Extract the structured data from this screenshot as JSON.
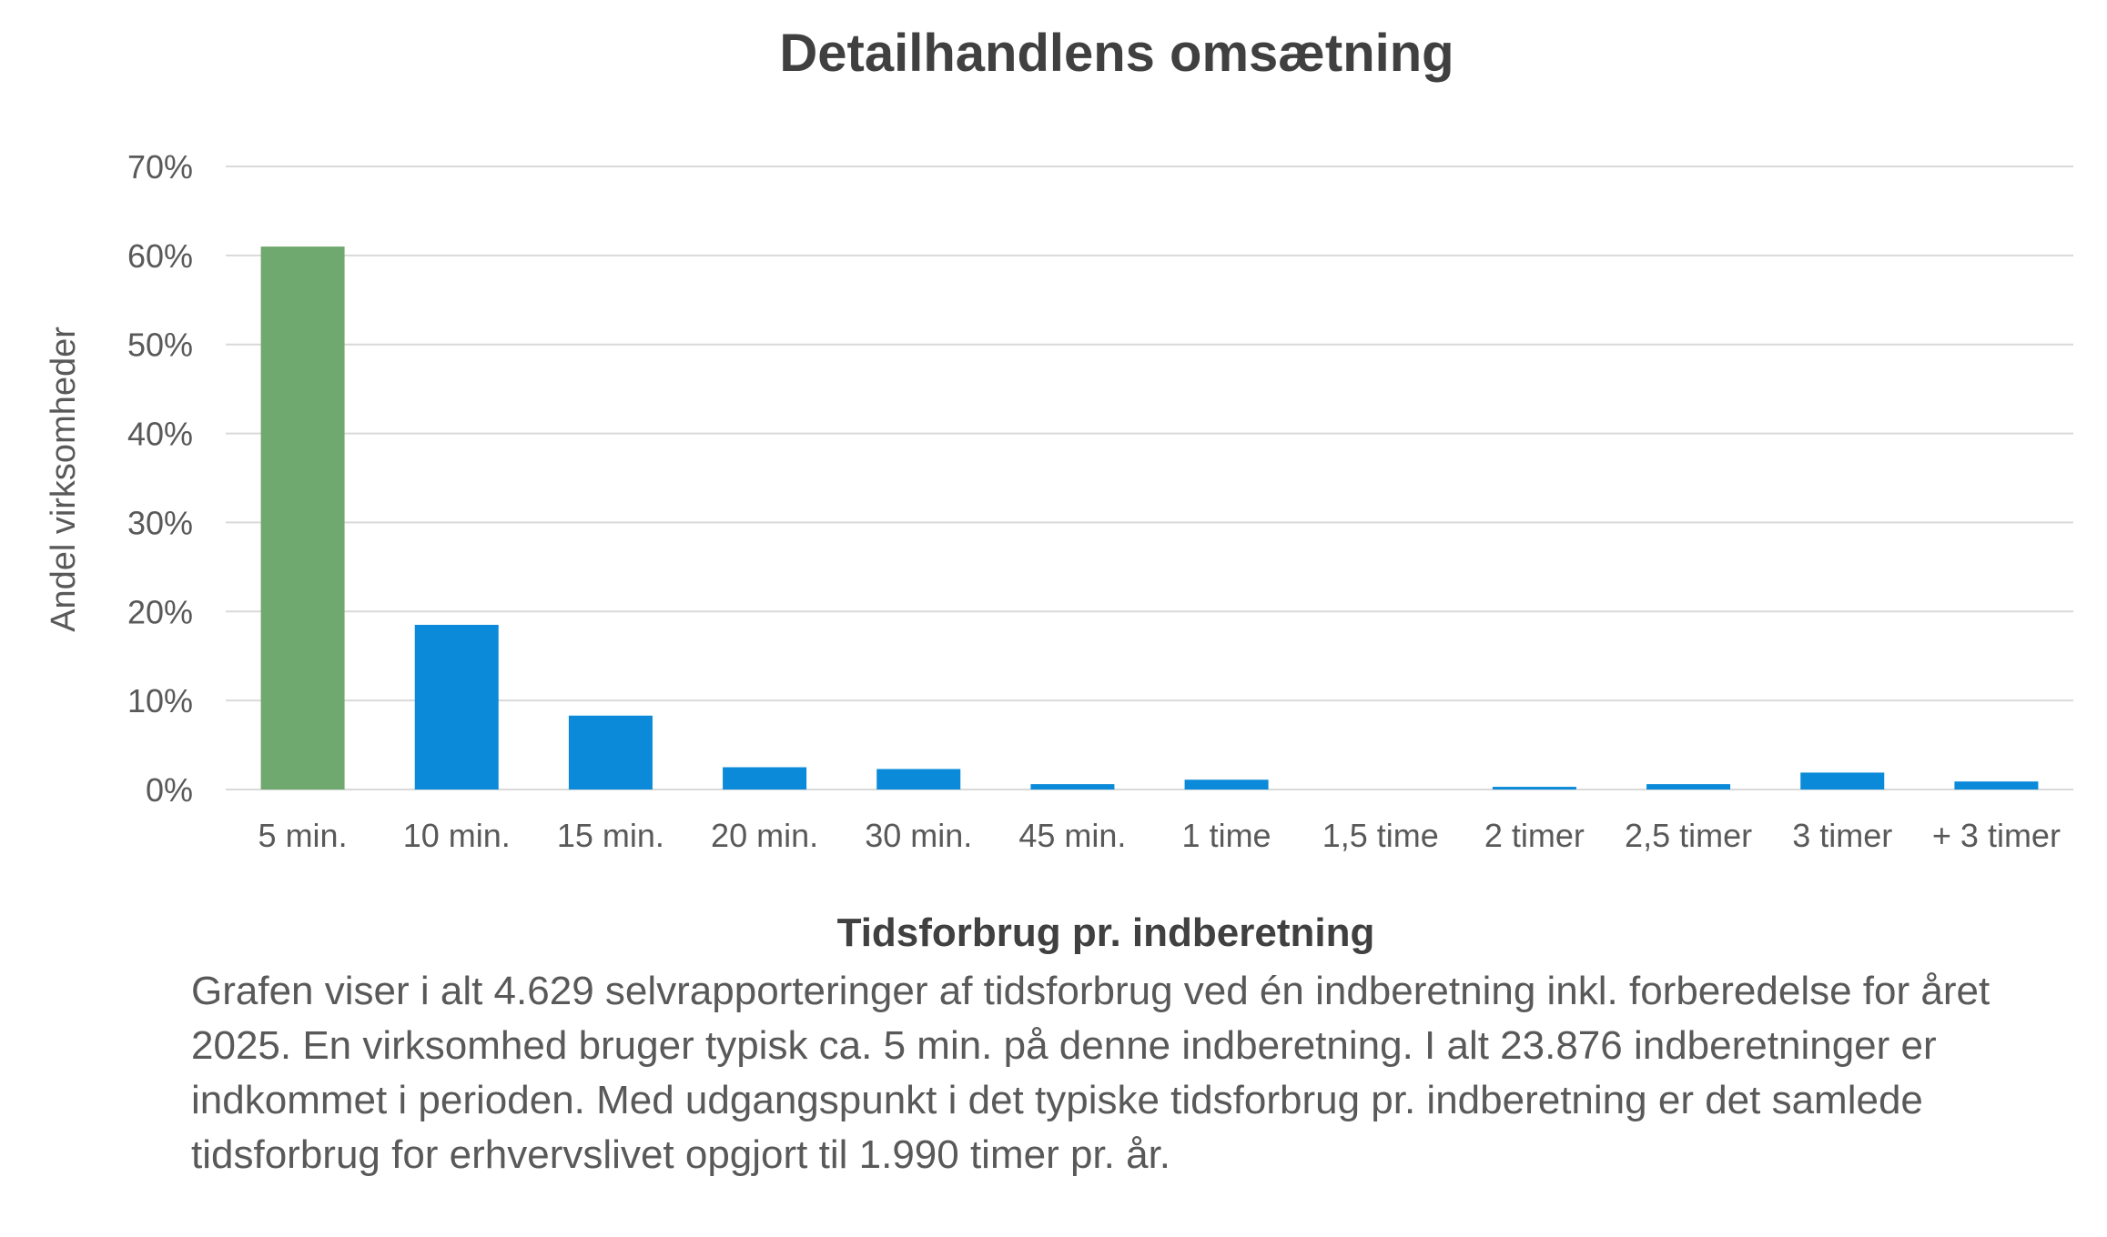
{
  "chart_data": {
    "type": "bar",
    "title": "Detailhandlens omsætning",
    "xlabel": "Tidsforbrug pr. indberetning",
    "ylabel": "Andel virksomheder",
    "categories": [
      "5 min.",
      "10 min.",
      "15 min.",
      "20 min.",
      "30 min.",
      "45 min.",
      "1 time",
      "1,5 time",
      "2 timer",
      "2,5 timer",
      "3 timer",
      "+ 3 timer"
    ],
    "series": [
      {
        "values": [
          61.0,
          18.5,
          8.3,
          2.5,
          2.3,
          0.6,
          1.1,
          0.0,
          0.3,
          0.6,
          1.9,
          0.9
        ]
      }
    ],
    "highlight_index": 0,
    "colors": {
      "highlight": "#70a96f",
      "bar": "#0a8ad8"
    },
    "ylim": [
      0,
      70
    ],
    "yticks": [
      0,
      10,
      20,
      30,
      40,
      50,
      60,
      70
    ],
    "ytick_labels": [
      "0%",
      "10%",
      "20%",
      "30%",
      "40%",
      "50%",
      "60%",
      "70%"
    ],
    "grid": true,
    "legend": false
  },
  "caption": "Grafen viser i alt 4.629 selvrapporteringer af tidsforbrug ved én indberetning inkl. forberedelse for året 2025. En virksomhed bruger typisk ca. 5 min. på denne indberetning. I alt 23.876 indberetninger er indkommet i perioden. Med udgangspunkt i det typiske tidsforbrug pr. indberetning er det samlede tidsforbrug for erhvervslivet opgjort til 1.990 timer pr. år."
}
